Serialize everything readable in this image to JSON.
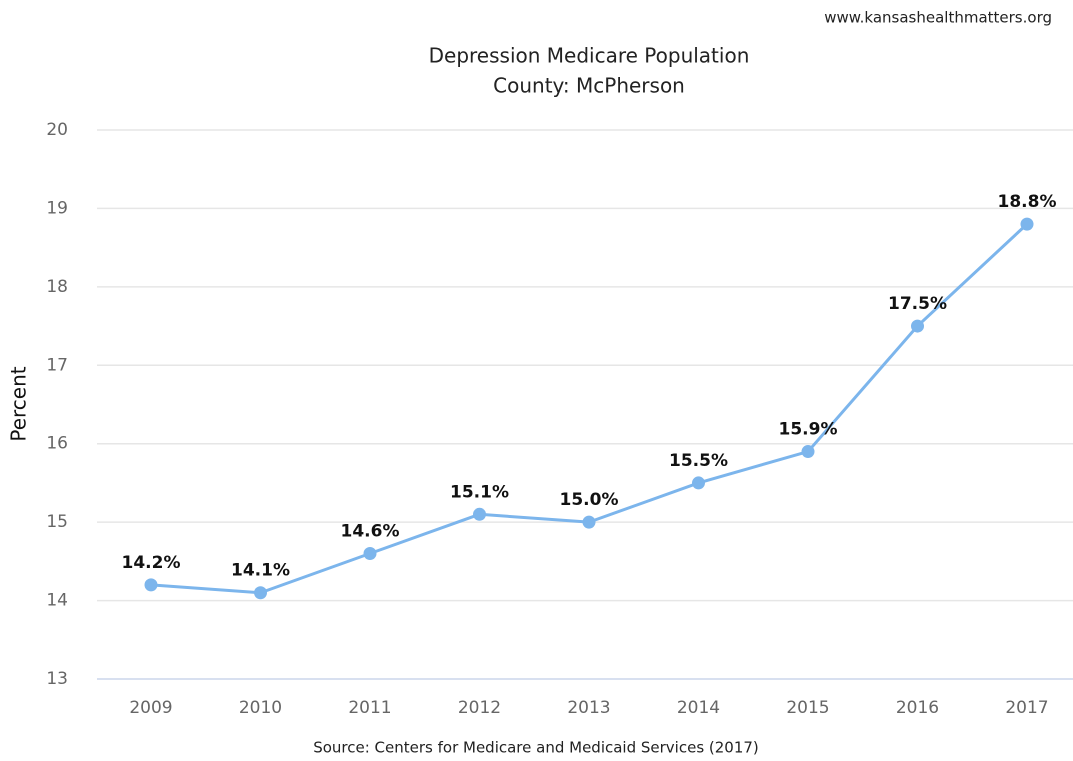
{
  "chart_data": {
    "type": "line",
    "site": "www.kansashealthmatters.org",
    "title": "Depression Medicare Population",
    "subtitle": "County: McPherson",
    "y_label": "Percent",
    "source": "Source: Centers for Medicare and Medicaid Services (2017)",
    "categories": [
      "2009",
      "2010",
      "2011",
      "2012",
      "2013",
      "2014",
      "2015",
      "2016",
      "2017"
    ],
    "series": [
      {
        "name": "McPherson",
        "color": "#7cb5ec",
        "values": [
          14.2,
          14.1,
          14.6,
          15.1,
          15.0,
          15.5,
          15.9,
          17.5,
          18.8
        ],
        "value_labels": [
          "14.2%",
          "14.1%",
          "14.6%",
          "15.1%",
          "15.0%",
          "15.5%",
          "15.9%",
          "17.5%",
          "18.8%"
        ]
      }
    ],
    "ylim": [
      13,
      20
    ],
    "yticks": [
      13,
      14,
      15,
      16,
      17,
      18,
      19,
      20
    ],
    "grid": true
  }
}
